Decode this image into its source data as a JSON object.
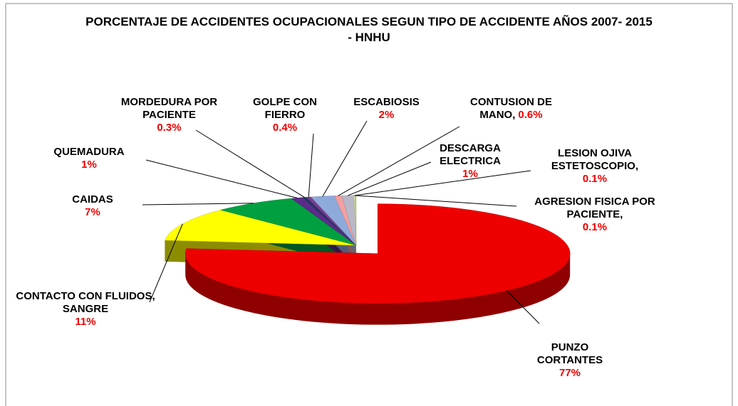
{
  "chart_data": {
    "type": "pie",
    "title": "PORCENTAJE DE ACCIDENTES OCUPACIONALES SEGUN TIPO DE ACCIDENTE  AÑOS 2007- 2015 - HNHU",
    "categories": [
      "PUNZO CORTANTES",
      "CONTACTO CON FLUIDOS, SANGRE",
      "CAIDAS",
      "QUEMADURA",
      "MORDEDURA POR PACIENTE",
      "GOLPE CON FIERRO",
      "ESCABIOSIS",
      "CONTUSION DE MANO,",
      "DESCARGA ELECTRICA",
      "LESION OJIVA ESTETOSCOPIO,",
      "AGRESION FISICA POR PACIENTE,"
    ],
    "values": [
      77,
      11,
      7,
      1,
      0.3,
      0.4,
      2,
      0.6,
      1,
      0.1,
      0.1
    ],
    "value_labels": [
      "77%",
      "11%",
      "7%",
      "1%",
      "0.3%",
      "0.4%",
      "2%",
      "0.6%",
      "1%",
      "0.1%",
      "0.1%"
    ],
    "colors": [
      "#ee0000",
      "#ffff00",
      "#00a040",
      "#5b2c8a",
      "#1f3864",
      "#7b3c90",
      "#8eaadb",
      "#f4a0a0",
      "#b8b8c8",
      "#d8e4b0",
      "#c4d890"
    ]
  }
}
